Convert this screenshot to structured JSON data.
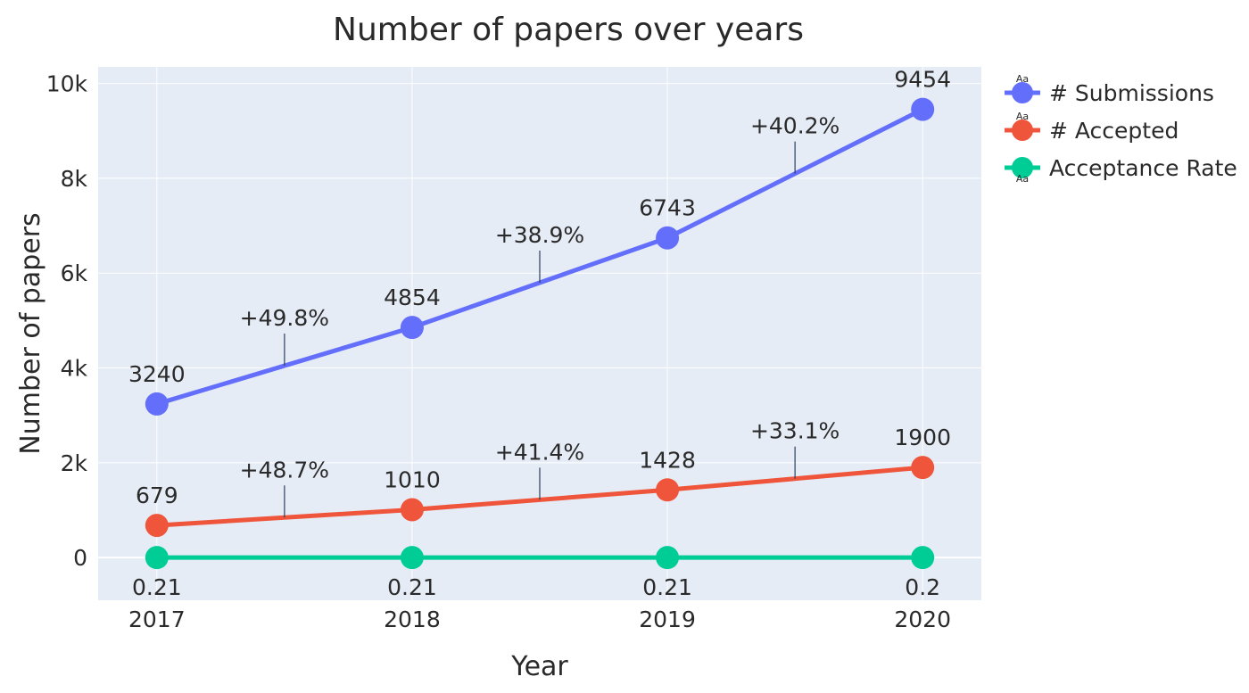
{
  "chart_data": {
    "type": "line",
    "title": "Number of papers over years",
    "xlabel": "Year",
    "ylabel": "Number of papers",
    "x": [
      2017,
      2018,
      2019,
      2020
    ],
    "x_tick_labels": [
      "2017",
      "2018",
      "2019",
      "2020"
    ],
    "y_ticks": [
      0,
      2000,
      4000,
      6000,
      8000,
      10000
    ],
    "y_tick_labels": [
      "0",
      "2k",
      "4k",
      "6k",
      "8k",
      "10k"
    ],
    "ylim": [
      -900,
      10350
    ],
    "xlim": [
      2016.77,
      2020.23
    ],
    "grid": true,
    "legend_position": "top-right",
    "series": [
      {
        "name": "# Submissions",
        "color": "#636efa",
        "values": [
          3240,
          4854,
          6743,
          9454
        ],
        "point_labels": [
          "3240",
          "4854",
          "6743",
          "9454"
        ],
        "point_label_position": "top",
        "growth_labels": [
          "+49.8%",
          "+38.9%",
          "+40.2%"
        ]
      },
      {
        "name": "# Accepted",
        "color": "#ef553b",
        "values": [
          679,
          1010,
          1428,
          1900
        ],
        "point_labels": [
          "679",
          "1010",
          "1428",
          "1900"
        ],
        "point_label_position": "top",
        "growth_labels": [
          "+48.7%",
          "+41.4%",
          "+33.1%"
        ]
      },
      {
        "name": "Acceptance Rate",
        "color": "#00cc96",
        "values": [
          0.21,
          0.21,
          0.21,
          0.2
        ],
        "point_labels": [
          "0.21",
          "0.21",
          "0.21",
          "0.2"
        ],
        "point_label_position": "bottom"
      }
    ],
    "legend_marker_text": "Aa"
  }
}
